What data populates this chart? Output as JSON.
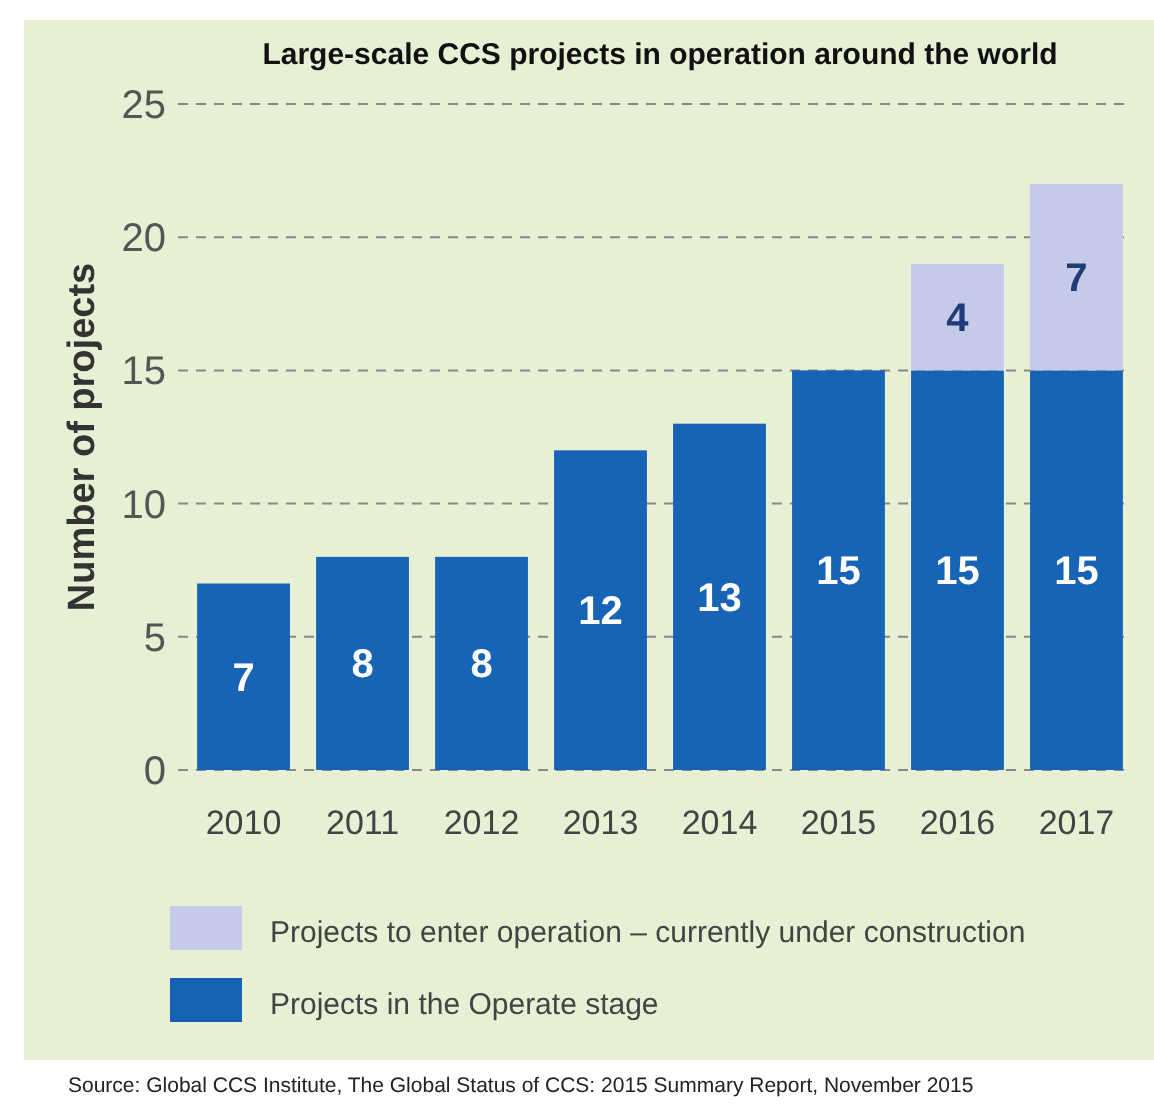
{
  "chart_data": {
    "type": "bar",
    "title": "Large-scale CCS projects in operation around the world",
    "ylabel": "Number of projects",
    "categories": [
      "2010",
      "2011",
      "2012",
      "2013",
      "2014",
      "2015",
      "2016",
      "2017"
    ],
    "stacked": true,
    "series": [
      {
        "name": "Projects in the Operate stage",
        "color": "#1763b5",
        "values": [
          7,
          8,
          8,
          12,
          13,
          15,
          15,
          15
        ]
      },
      {
        "name": "Projects to enter operation – currently under construction",
        "color": "#c6cae9",
        "values": [
          null,
          null,
          null,
          null,
          null,
          null,
          4,
          7
        ]
      }
    ],
    "ylim": [
      0,
      25
    ],
    "yticks": [
      0,
      5,
      10,
      15,
      20,
      25
    ],
    "grid": "y",
    "legend": "bottom",
    "data_labels": true,
    "annotations": [
      "Source: Global CCS Institute, The Global Status of CCS: 2015 Summary Report, November 2015"
    ]
  }
}
